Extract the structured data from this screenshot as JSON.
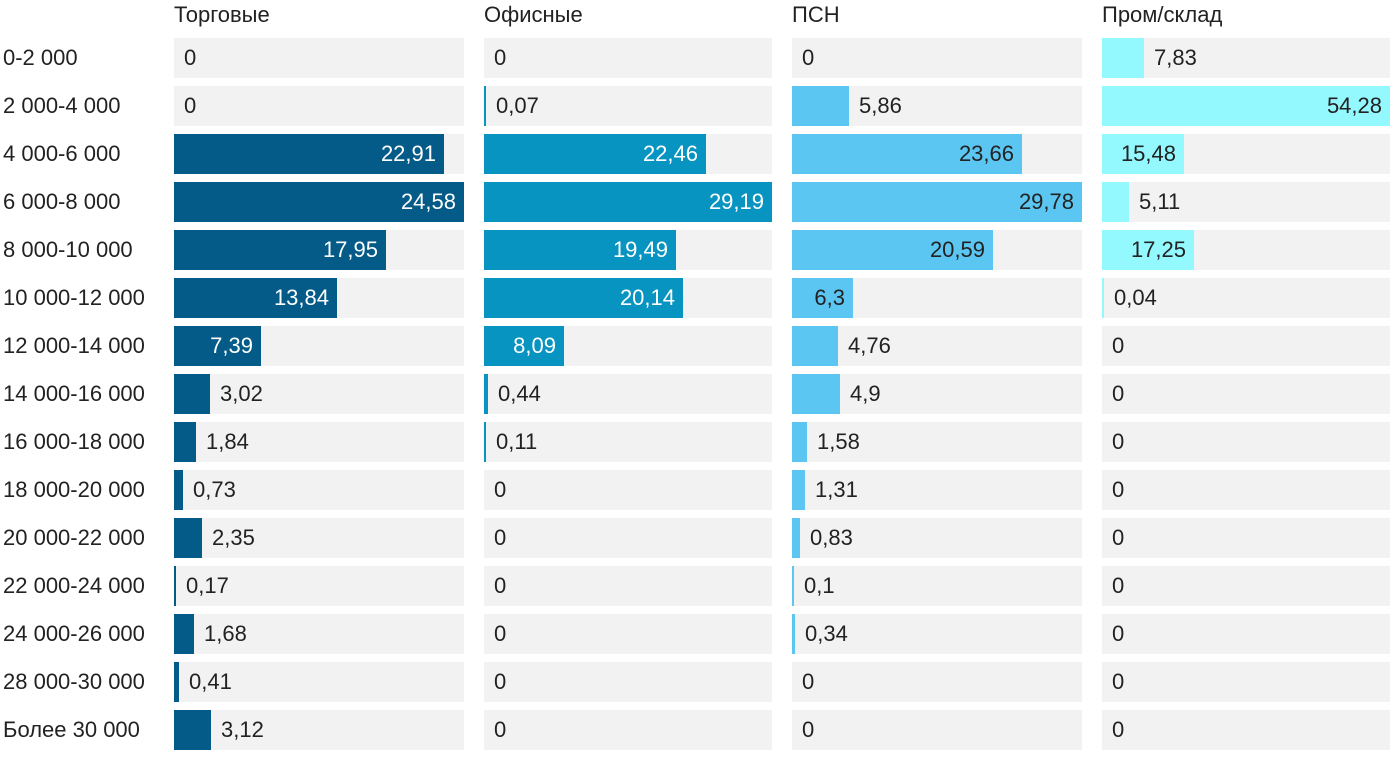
{
  "chart_data": {
    "type": "bar",
    "orientation": "horizontal",
    "layout": "small-multiples",
    "categories": [
      "0-2 000",
      "2 000-4 000",
      "4 000-6 000",
      "6 000-8 000",
      "8 000-10 000",
      "10 000-12 000",
      "12 000-14 000",
      "14 000-16 000",
      "16 000-18 000",
      "18 000-20 000",
      "20 000-22 000",
      "22 000-24 000",
      "24 000-26 000",
      "28 000-30 000",
      "Более 30 000"
    ],
    "series": [
      {
        "name": "Торговые",
        "color": "#045b87",
        "label_inside_color": "#ffffff",
        "values": [
          0,
          0,
          22.91,
          24.58,
          17.95,
          13.84,
          7.39,
          3.02,
          1.84,
          0.73,
          2.35,
          0.17,
          1.68,
          0.41,
          3.12
        ],
        "labels": [
          "0",
          "0",
          "22,91",
          "24,58",
          "17,95",
          "13,84",
          "7,39",
          "3,02",
          "1,84",
          "0,73",
          "2,35",
          "0,17",
          "1,68",
          "0,41",
          "3,12"
        ]
      },
      {
        "name": "Офисные",
        "color": "#0894c1",
        "label_inside_color": "#ffffff",
        "values": [
          0,
          0.07,
          22.46,
          29.19,
          19.49,
          20.14,
          8.09,
          0.44,
          0.11,
          0,
          0,
          0,
          0,
          0,
          0
        ],
        "labels": [
          "0",
          "0,07",
          "22,46",
          "29,19",
          "19,49",
          "20,14",
          "8,09",
          "0,44",
          "0,11",
          "0",
          "0",
          "0",
          "0",
          "0",
          "0"
        ]
      },
      {
        "name": "ПСН",
        "color": "#5bc6f2",
        "label_inside_color": "#222222",
        "values": [
          0,
          5.86,
          23.66,
          29.78,
          20.59,
          6.3,
          4.76,
          4.9,
          1.58,
          1.31,
          0.83,
          0.1,
          0.34,
          0,
          0
        ],
        "labels": [
          "0",
          "5,86",
          "23,66",
          "29,78",
          "20,59",
          "6,3",
          "4,76",
          "4,9",
          "1,58",
          "1,31",
          "0,83",
          "0,1",
          "0,34",
          "0",
          "0"
        ]
      },
      {
        "name": "Пром/склад",
        "color": "#93f9ff",
        "label_inside_color": "#222222",
        "values": [
          7.83,
          54.28,
          15.48,
          5.11,
          17.25,
          0.04,
          0,
          0,
          0,
          0,
          0,
          0,
          0,
          0,
          0
        ],
        "labels": [
          "7,83",
          "54,28",
          "15,48",
          "5,11",
          "17,25",
          "0,04",
          "0",
          "0",
          "0",
          "0",
          "0",
          "0",
          "0",
          "0",
          "0"
        ]
      }
    ],
    "panel_max": [
      24.58,
      29.19,
      29.78,
      54.28
    ],
    "track_color": "#f2f2f2",
    "text_color": "#222222"
  }
}
